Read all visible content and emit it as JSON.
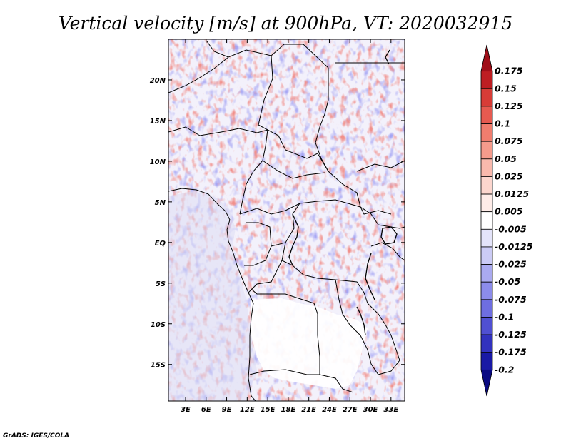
{
  "chart_data": {
    "type": "heatmap",
    "title": "Vertical velocity [m/s] at 900hPa, VT: 2020032915",
    "variable": "Vertical velocity",
    "units": "m/s",
    "level": "900hPa",
    "valid_time": "2020032915",
    "x_ticks": [
      "3E",
      "6E",
      "9E",
      "12E",
      "15E",
      "18E",
      "21E",
      "24E",
      "27E",
      "30E",
      "33E"
    ],
    "x_values": [
      3,
      6,
      9,
      12,
      15,
      18,
      21,
      24,
      27,
      30,
      33
    ],
    "y_ticks": [
      "20N",
      "15N",
      "10N",
      "5N",
      "EQ",
      "5S",
      "10S",
      "15S"
    ],
    "y_values": [
      20,
      15,
      10,
      5,
      0,
      -5,
      -10,
      -15
    ],
    "xlim": [
      0.5,
      35
    ],
    "ylim": [
      -19.5,
      25
    ],
    "colorbar": {
      "labels": [
        "0.175",
        "0.15",
        "0.125",
        "0.1",
        "0.075",
        "0.05",
        "0.025",
        "0.0125",
        "0.005",
        "-0.005",
        "-0.0125",
        "-0.025",
        "-0.05",
        "-0.075",
        "-0.1",
        "-0.125",
        "-0.175",
        "-0.2"
      ],
      "colors": [
        "#a00f19",
        "#be1e23",
        "#d73c37",
        "#e65a50",
        "#f07d6e",
        "#f59b8c",
        "#f9b9ad",
        "#fcd6ce",
        "#feece8",
        "#ffffff",
        "#e4e4fa",
        "#cbcbf5",
        "#aaaaf0",
        "#8c8ceb",
        "#6e6ee1",
        "#5050d2",
        "#3232be",
        "#1919a5",
        "#0a0a82"
      ]
    },
    "credit": "GrADS: IGES/COLA"
  }
}
